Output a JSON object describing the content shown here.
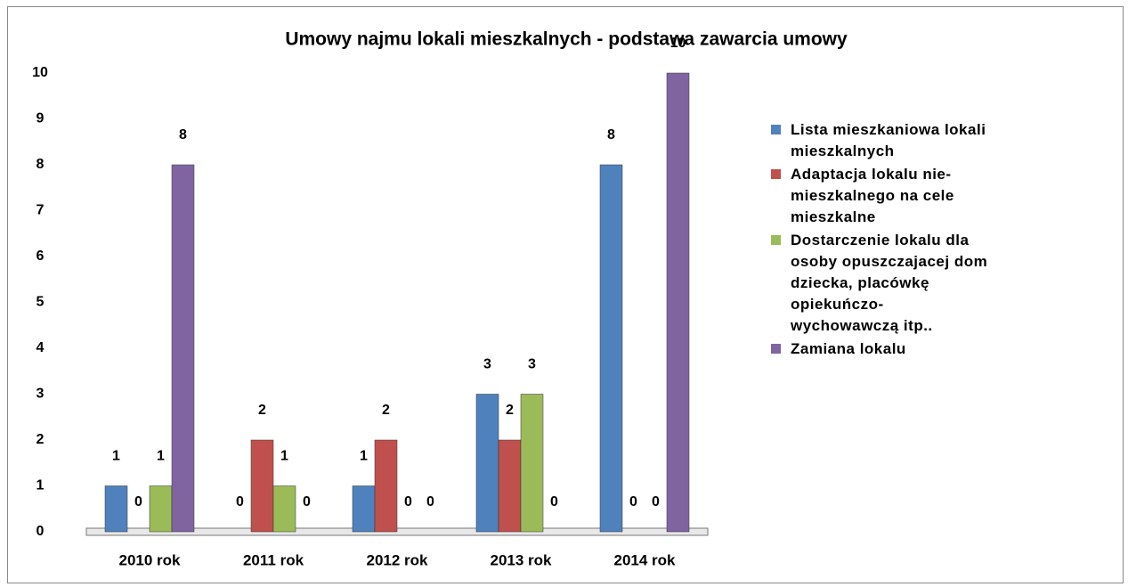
{
  "chart_data": {
    "type": "bar",
    "title": "Umowy najmu lokali mieszkalnych - podstawa zawarcia umowy",
    "categories": [
      "2010 rok",
      "2011 rok",
      "2012 rok",
      "2013 rok",
      "2014 rok"
    ],
    "series": [
      {
        "name": "Lista mieszkaniowa lokali mieszkalnych",
        "color": "#4f81bd",
        "values": [
          1,
          0,
          1,
          3,
          8
        ]
      },
      {
        "name": "Adaptacja lokalu nie-mieszkalnego na cele mieszkalne",
        "color": "#c0504d",
        "values": [
          0,
          2,
          2,
          2,
          0
        ]
      },
      {
        "name": "Dostarczenie lokalu dla osoby opuszczajacej dom dziecka, placówkę opiekuńczo-wychowawczą itp..",
        "color": "#9bbb59",
        "values": [
          1,
          1,
          0,
          3,
          0
        ]
      },
      {
        "name": "Zamiana lokalu",
        "color": "#8064a2",
        "values": [
          8,
          0,
          0,
          0,
          10
        ]
      }
    ],
    "ylim": [
      0,
      10
    ],
    "yticks": [
      0,
      1,
      2,
      3,
      4,
      5,
      6,
      7,
      8,
      9,
      10
    ],
    "grid": false,
    "legend": "right"
  }
}
